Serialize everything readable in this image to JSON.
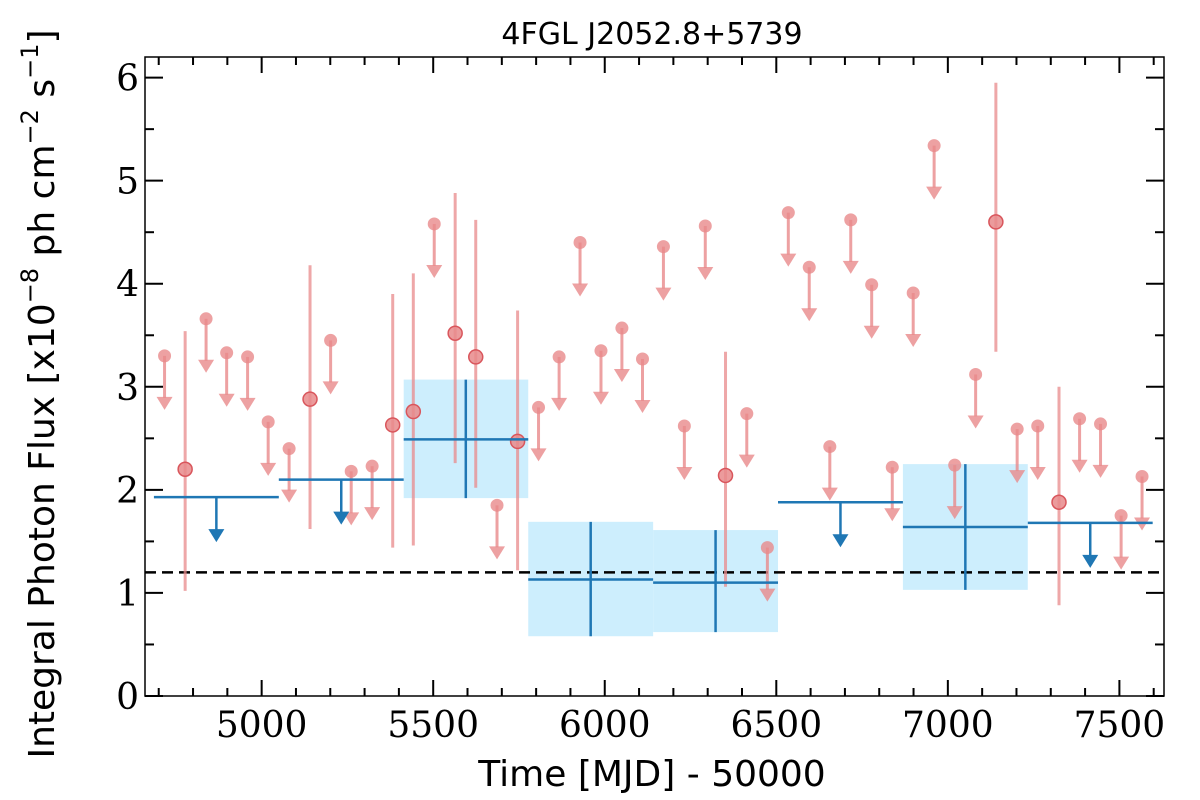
{
  "chart_data": {
    "type": "scatter",
    "title": "4FGL J2052.8+5739",
    "xlabel": "Time [MJD] - 50000",
    "ylabel": "Integral Photon Flux [x10",
    "ylabel_exp1": "−8",
    "ylabel_mid": " ph cm",
    "ylabel_exp2": "−2",
    "ylabel_mid2": " s",
    "ylabel_exp3": "−1",
    "ylabel_end": "]",
    "xlim": [
      4660,
      7630
    ],
    "ylim": [
      0,
      6.2
    ],
    "xticks": [
      5000,
      5500,
      6000,
      6500,
      7000,
      7500
    ],
    "xticklabels": [
      "5000",
      "5500",
      "6000",
      "6500",
      "7000",
      "7500"
    ],
    "yticks": [
      0,
      1,
      2,
      3,
      4,
      5,
      6
    ],
    "yticklabels": [
      "0",
      "1",
      "2",
      "3",
      "4",
      "5",
      "6"
    ],
    "reference_level": 1.2,
    "colors": {
      "fine_bins": "#e8898b",
      "coarse_bins": "#1f77b4",
      "coarse_box_fill": "#cdeefd",
      "reference_line": "#000000"
    },
    "coarse_detections": [
      {
        "x": 5595,
        "x0": 5414,
        "x1": 5777,
        "y": 2.49,
        "ylo": 1.92,
        "yhi": 3.07
      },
      {
        "x": 5959,
        "x0": 5777,
        "x1": 6141,
        "y": 1.13,
        "ylo": 0.58,
        "yhi": 1.69
      },
      {
        "x": 6323,
        "x0": 6141,
        "x1": 6505,
        "y": 1.1,
        "ylo": 0.62,
        "yhi": 1.61
      },
      {
        "x": 7051,
        "x0": 6869,
        "x1": 7233,
        "y": 1.64,
        "ylo": 1.03,
        "yhi": 2.25
      }
    ],
    "coarse_upper_limits": [
      {
        "x": 4868,
        "x0": 4686,
        "x1": 5050,
        "y": 1.93
      },
      {
        "x": 5232,
        "x0": 5050,
        "x1": 5414,
        "y": 2.1
      },
      {
        "x": 6687,
        "x0": 6505,
        "x1": 6869,
        "y": 1.88
      },
      {
        "x": 7415,
        "x0": 7233,
        "x1": 7597,
        "y": 1.68
      }
    ],
    "fine_detections": [
      {
        "x": 4777,
        "y": 2.2,
        "ylo": 1.02,
        "yhi": 3.54
      },
      {
        "x": 5141,
        "y": 2.88,
        "ylo": 1.62,
        "yhi": 4.18
      },
      {
        "x": 5382,
        "y": 2.63,
        "ylo": 1.44,
        "yhi": 3.9
      },
      {
        "x": 5442,
        "y": 2.76,
        "ylo": 1.46,
        "yhi": 4.1
      },
      {
        "x": 5564,
        "y": 3.52,
        "ylo": 2.26,
        "yhi": 4.88
      },
      {
        "x": 5624,
        "y": 3.29,
        "ylo": 2.02,
        "yhi": 4.62
      },
      {
        "x": 5746,
        "y": 2.47,
        "ylo": 1.22,
        "yhi": 3.74
      },
      {
        "x": 6352,
        "y": 2.14,
        "ylo": 1.06,
        "yhi": 3.34
      },
      {
        "x": 7140,
        "y": 4.6,
        "ylo": 3.34,
        "yhi": 5.95
      },
      {
        "x": 7324,
        "y": 1.88,
        "ylo": 0.88,
        "yhi": 3.0
      }
    ],
    "fine_upper_limits": [
      {
        "x": 4717,
        "y": 3.3
      },
      {
        "x": 4838,
        "y": 3.66
      },
      {
        "x": 4898,
        "y": 3.33
      },
      {
        "x": 4959,
        "y": 3.29
      },
      {
        "x": 5019,
        "y": 2.66
      },
      {
        "x": 5080,
        "y": 2.4
      },
      {
        "x": 5201,
        "y": 3.45
      },
      {
        "x": 5261,
        "y": 2.18
      },
      {
        "x": 5322,
        "y": 2.23
      },
      {
        "x": 5503,
        "y": 4.58
      },
      {
        "x": 5686,
        "y": 1.85
      },
      {
        "x": 5807,
        "y": 2.8
      },
      {
        "x": 5867,
        "y": 3.29
      },
      {
        "x": 5928,
        "y": 4.4
      },
      {
        "x": 5989,
        "y": 3.35
      },
      {
        "x": 6050,
        "y": 3.57
      },
      {
        "x": 6110,
        "y": 3.27
      },
      {
        "x": 6171,
        "y": 4.36
      },
      {
        "x": 6232,
        "y": 2.62
      },
      {
        "x": 6293,
        "y": 4.56
      },
      {
        "x": 6414,
        "y": 2.74
      },
      {
        "x": 6474,
        "y": 1.44
      },
      {
        "x": 6535,
        "y": 4.69
      },
      {
        "x": 6596,
        "y": 4.16
      },
      {
        "x": 6656,
        "y": 2.42
      },
      {
        "x": 6717,
        "y": 4.62
      },
      {
        "x": 6778,
        "y": 3.99
      },
      {
        "x": 6838,
        "y": 2.22
      },
      {
        "x": 6899,
        "y": 3.91
      },
      {
        "x": 6960,
        "y": 5.34
      },
      {
        "x": 7020,
        "y": 2.24
      },
      {
        "x": 7081,
        "y": 3.12
      },
      {
        "x": 7202,
        "y": 2.59
      },
      {
        "x": 7262,
        "y": 2.62
      },
      {
        "x": 7384,
        "y": 2.69
      },
      {
        "x": 7445,
        "y": 2.64
      },
      {
        "x": 7505,
        "y": 1.75
      },
      {
        "x": 7566,
        "y": 2.13
      }
    ]
  }
}
